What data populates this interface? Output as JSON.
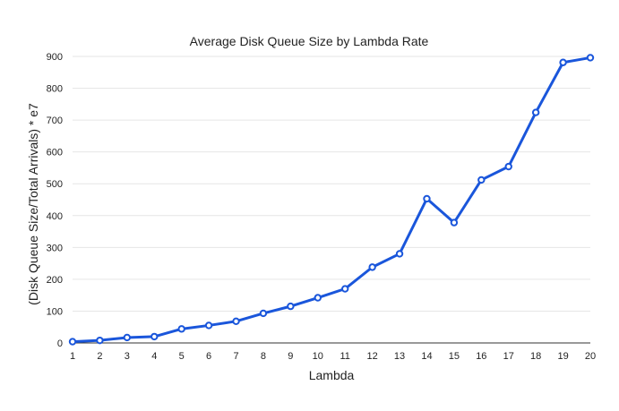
{
  "chart_data": {
    "type": "line",
    "title": "Average Disk Queue Size by Lambda Rate",
    "xlabel": "Lambda",
    "ylabel": "(Disk Queue Size/Total Arrivals) * e7",
    "x": [
      1,
      2,
      3,
      4,
      5,
      6,
      7,
      8,
      9,
      10,
      11,
      12,
      13,
      14,
      15,
      16,
      17,
      18,
      19,
      20
    ],
    "series": [
      {
        "values": [
          4,
          8,
          17,
          20,
          44,
          55,
          68,
          93,
          115,
          142,
          170,
          238,
          280,
          453,
          378,
          512,
          554,
          724,
          881,
          896
        ],
        "color": "#1a56db"
      }
    ],
    "ylim": [
      0,
      900
    ],
    "yticks": [
      0,
      100,
      200,
      300,
      400,
      500,
      600,
      700,
      800,
      900
    ],
    "grid": true,
    "legend": "none",
    "markers": "hollow-circle"
  }
}
